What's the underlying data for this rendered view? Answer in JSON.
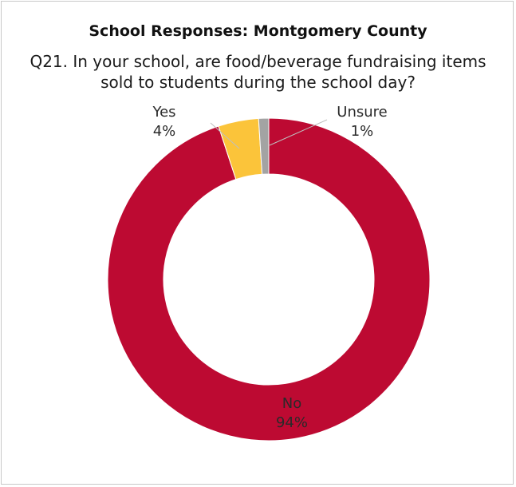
{
  "chart_data": {
    "type": "pie",
    "donut": true,
    "title": "School Responses: Montgomery County",
    "subtitle_lines": [
      "Q21. In your school, are food/beverage fundraising items",
      "sold to students during the school day?"
    ],
    "slices": [
      {
        "label": "No",
        "value": 94,
        "value_label": "94%",
        "color": "#bd0a32"
      },
      {
        "label": "Yes",
        "value": 4,
        "value_label": "4%",
        "color": "#fbc43a"
      },
      {
        "label": "Unsure",
        "value": 1,
        "value_label": "1%",
        "color": "#a3a3a3"
      }
    ]
  }
}
